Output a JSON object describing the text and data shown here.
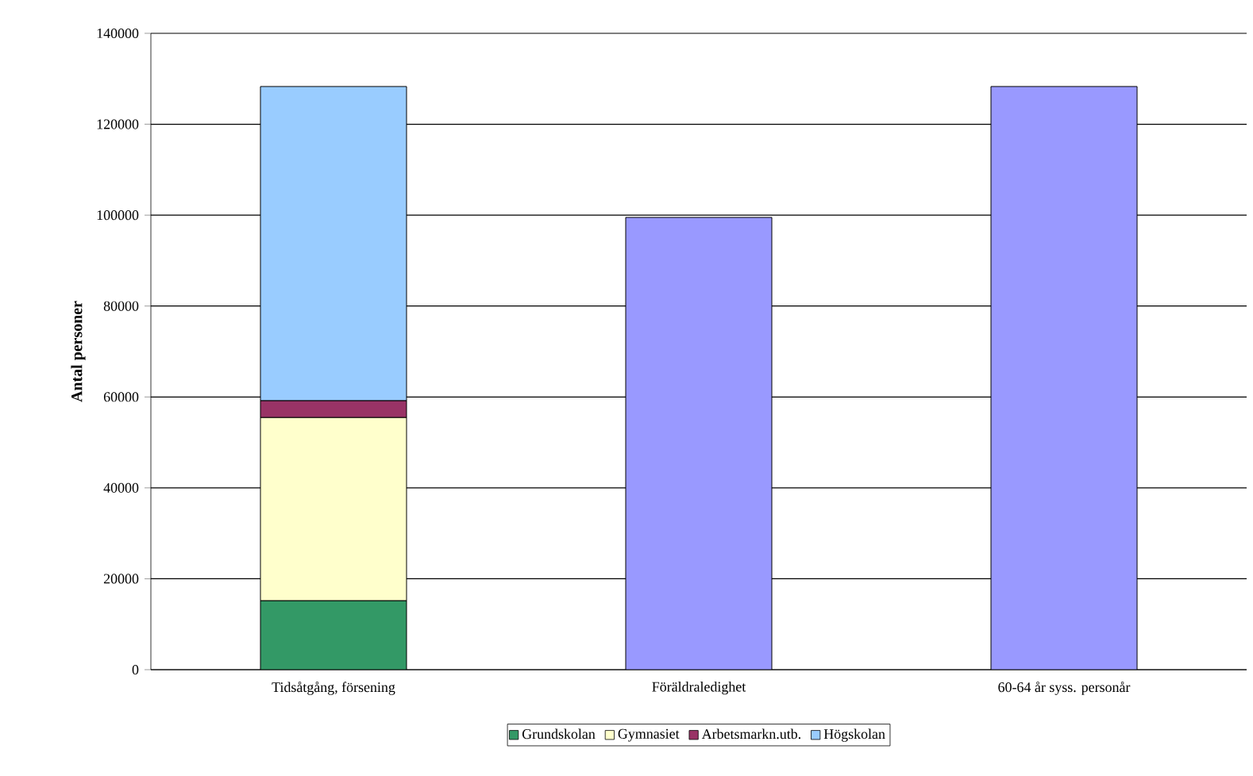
{
  "chart_data": {
    "type": "bar",
    "stacked": true,
    "ylabel": "Antal personer",
    "categories": [
      "Tidsåtgång, försening",
      "Föräldraledighet",
      "60-64 år syss. personår"
    ],
    "series": [
      {
        "name": "Grundskolan",
        "color": "#339966",
        "values": [
          15200,
          null,
          null
        ]
      },
      {
        "name": "Gymnasiet",
        "color": "#ffffcc",
        "values": [
          40300,
          null,
          null
        ]
      },
      {
        "name": "Arbetsmarkn.utb.",
        "color": "#993366",
        "values": [
          3700,
          null,
          null
        ]
      },
      {
        "name": "Högskolan",
        "color": "#99ccff",
        "values": [
          69100,
          null,
          null
        ]
      },
      {
        "color": "#9999ff",
        "values": [
          null,
          99500,
          128300
        ]
      }
    ],
    "ylim": [
      0,
      140000
    ],
    "yticks": [
      0,
      20000,
      40000,
      60000,
      80000,
      100000,
      120000,
      140000
    ],
    "grid": "y",
    "legend": "bottom"
  }
}
